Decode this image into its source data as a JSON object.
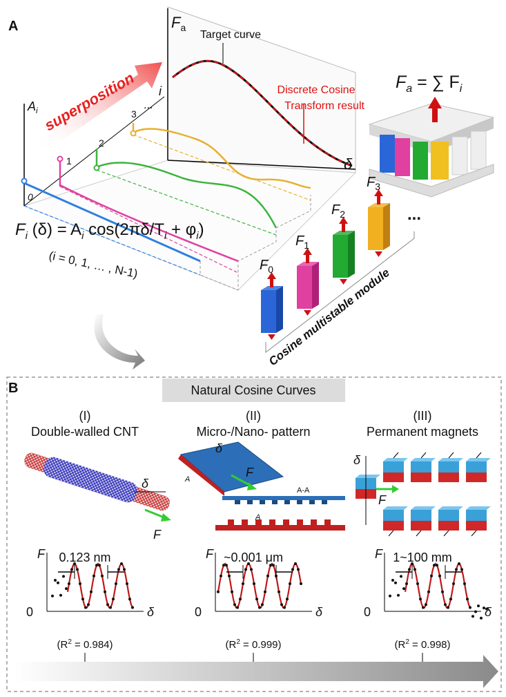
{
  "panel_a": {
    "label": "A",
    "fa_axis": {
      "main": "F",
      "sub": "a"
    },
    "ai_axis": {
      "main": "A",
      "sub": "i"
    },
    "i_axis": "i",
    "i_dots": "...",
    "delta_axis": "δ",
    "superposition": "superposition",
    "target_curve": "Target curve",
    "dct_result": [
      "Discrete Cosine",
      "Transform result"
    ],
    "indices": [
      "0",
      "1",
      "2",
      "3"
    ],
    "formula": [
      "F",
      "i",
      " (δ) = A",
      "i",
      " cos(2πδ/T",
      "i",
      " + φ",
      "i",
      ")"
    ],
    "formula_range": "(i = 0, 1, … , N-1)",
    "sum_equation": [
      "F",
      "a",
      " = ∑ F",
      "i"
    ],
    "modules": [
      {
        "main": "F",
        "sub": "0"
      },
      {
        "main": "F",
        "sub": "1"
      },
      {
        "main": "F",
        "sub": "2"
      },
      {
        "main": "F",
        "sub": "3"
      }
    ],
    "modules_more": "...",
    "module_caption": "Cosine multistable module"
  },
  "panel_b": {
    "label": "B",
    "title": "Natural Cosine Curves",
    "plot_axes": {
      "force": "F",
      "origin": "0",
      "displacement": "δ"
    },
    "columns": [
      {
        "numeral": "(I)",
        "name": "Double-walled CNT",
        "scale": "0.123 nm",
        "fit": [
          "(R",
          "2",
          " = 0.984)"
        ],
        "unit": "nm",
        "labels": [
          "δ",
          "F"
        ]
      },
      {
        "numeral": "(II)",
        "name": "Micro-/Nano- pattern",
        "scale": "~0.001 μm",
        "fit": [
          "(R",
          "2",
          " = 0.999)"
        ],
        "unit": "μm",
        "labels": [
          "δ",
          "A",
          "A",
          "F",
          "A-A"
        ]
      },
      {
        "numeral": "(III)",
        "name": "Permanent magnets",
        "scale": "1~100 mm",
        "fit": [
          "(R",
          "2",
          " = 0.998)"
        ],
        "unit": "mm",
        "labels": [
          "δ",
          "F"
        ]
      }
    ]
  }
}
